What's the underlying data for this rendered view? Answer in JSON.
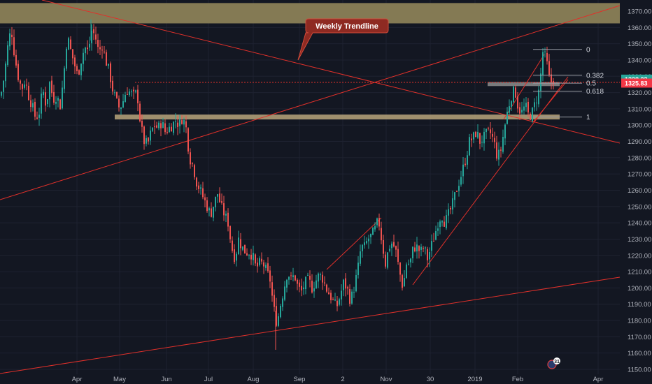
{
  "chart_data": {
    "type": "candlestick",
    "y_axis": {
      "range": [
        1148,
        1375
      ],
      "ticks": [
        "1370.00",
        "1360.00",
        "1350.00",
        "1340.00",
        "1330.00",
        "1320.00",
        "1310.00",
        "1300.00",
        "1290.00",
        "1280.00",
        "1270.00",
        "1260.00",
        "1250.00",
        "1240.00",
        "1230.00",
        "1220.00",
        "1210.00",
        "1200.00",
        "1190.00",
        "1180.00",
        "1170.00",
        "1160.00",
        "1150.00"
      ],
      "side": "right"
    },
    "x_axis": {
      "ticks": [
        "Apr",
        "May",
        "Jun",
        "Jul",
        "Aug",
        "Sep",
        "2",
        "Nov",
        "30",
        "2019",
        "Feb",
        "Apr"
      ]
    },
    "price_tags": [
      {
        "value": 1328.23,
        "label": "1328.23",
        "color": "#26a69a"
      },
      {
        "value": 1325.83,
        "label": "1325.83",
        "color": "#f23645"
      }
    ],
    "fibonacci": {
      "high": 1346.5,
      "low": 1305.0,
      "levels": [
        {
          "ratio": 0,
          "label": "0"
        },
        {
          "ratio": 0.382,
          "label": "0.382"
        },
        {
          "ratio": 0.5,
          "label": "0.5"
        },
        {
          "ratio": 0.618,
          "label": "0.618"
        },
        {
          "ratio": 1,
          "label": "1"
        }
      ]
    },
    "zones": [
      {
        "from": 1362.5,
        "to": 1375,
        "color": "#8a7f57"
      },
      {
        "from": 1303.5,
        "to": 1306.5,
        "color": "#b9a57a"
      },
      {
        "from": 1324.0,
        "to": 1326.5,
        "color": "#8c8c8c"
      }
    ],
    "annotations": [
      {
        "text": "Weekly Trendline"
      }
    ],
    "badge": {
      "text": "31"
    },
    "price_path": [
      [
        0,
        1318
      ],
      [
        5,
        1330
      ],
      [
        10,
        1348
      ],
      [
        15,
        1360
      ],
      [
        20,
        1342
      ],
      [
        25,
        1330
      ],
      [
        30,
        1322
      ],
      [
        35,
        1328
      ],
      [
        40,
        1318
      ],
      [
        45,
        1312
      ],
      [
        50,
        1304
      ],
      [
        55,
        1308
      ],
      [
        60,
        1322
      ],
      [
        65,
        1312
      ],
      [
        70,
        1326
      ],
      [
        75,
        1316
      ],
      [
        80,
        1318
      ],
      [
        85,
        1312
      ],
      [
        90,
        1330
      ],
      [
        95,
        1355
      ],
      [
        100,
        1346
      ],
      [
        105,
        1338
      ],
      [
        110,
        1330
      ],
      [
        115,
        1340
      ],
      [
        120,
        1348
      ],
      [
        125,
        1345
      ],
      [
        130,
        1358
      ],
      [
        135,
        1355
      ],
      [
        140,
        1345
      ],
      [
        145,
        1349
      ],
      [
        150,
        1340
      ],
      [
        155,
        1333
      ],
      [
        160,
        1322
      ],
      [
        165,
        1315
      ],
      [
        170,
        1310
      ],
      [
        175,
        1315
      ],
      [
        180,
        1322
      ],
      [
        185,
        1320
      ],
      [
        190,
        1318
      ],
      [
        195,
        1320
      ],
      [
        200,
        1300
      ],
      [
        205,
        1290
      ],
      [
        210,
        1288
      ],
      [
        215,
        1296
      ],
      [
        220,
        1300
      ],
      [
        225,
        1298
      ],
      [
        230,
        1302
      ],
      [
        235,
        1296
      ],
      [
        240,
        1298
      ],
      [
        245,
        1300
      ],
      [
        250,
        1303
      ],
      [
        255,
        1300
      ],
      [
        260,
        1305
      ],
      [
        265,
        1298
      ],
      [
        270,
        1280
      ],
      [
        275,
        1275
      ],
      [
        280,
        1265
      ],
      [
        285,
        1260
      ],
      [
        290,
        1255
      ],
      [
        295,
        1250
      ],
      [
        300,
        1245
      ],
      [
        305,
        1252
      ],
      [
        310,
        1258
      ],
      [
        315,
        1250
      ],
      [
        320,
        1245
      ],
      [
        325,
        1240
      ],
      [
        330,
        1225
      ],
      [
        335,
        1218
      ],
      [
        340,
        1230
      ],
      [
        345,
        1225
      ],
      [
        350,
        1222
      ],
      [
        355,
        1222
      ],
      [
        360,
        1220
      ],
      [
        365,
        1212
      ],
      [
        370,
        1215
      ],
      [
        375,
        1215
      ],
      [
        380,
        1210
      ],
      [
        385,
        1205
      ],
      [
        390,
        1188
      ],
      [
        395,
        1178
      ],
      [
        400,
        1190
      ],
      [
        405,
        1200
      ],
      [
        410,
        1210
      ],
      [
        415,
        1205
      ],
      [
        420,
        1208
      ],
      [
        425,
        1200
      ],
      [
        430,
        1198
      ],
      [
        435,
        1203
      ],
      [
        440,
        1205
      ],
      [
        445,
        1200
      ],
      [
        450,
        1204
      ],
      [
        455,
        1208
      ],
      [
        460,
        1206
      ],
      [
        465,
        1200
      ],
      [
        470,
        1196
      ],
      [
        475,
        1192
      ],
      [
        480,
        1188
      ],
      [
        485,
        1195
      ],
      [
        490,
        1203
      ],
      [
        495,
        1200
      ],
      [
        500,
        1192
      ],
      [
        505,
        1200
      ],
      [
        510,
        1210
      ],
      [
        515,
        1225
      ],
      [
        520,
        1225
      ],
      [
        525,
        1230
      ],
      [
        530,
        1232
      ],
      [
        535,
        1236
      ],
      [
        540,
        1242
      ],
      [
        545,
        1228
      ],
      [
        550,
        1215
      ],
      [
        555,
        1225
      ],
      [
        560,
        1228
      ],
      [
        565,
        1222
      ],
      [
        570,
        1210
      ],
      [
        575,
        1200
      ],
      [
        580,
        1215
      ],
      [
        585,
        1215
      ],
      [
        590,
        1225
      ],
      [
        595,
        1225
      ],
      [
        600,
        1222
      ],
      [
        605,
        1225
      ],
      [
        610,
        1218
      ],
      [
        615,
        1225
      ],
      [
        620,
        1232
      ],
      [
        625,
        1240
      ],
      [
        630,
        1245
      ],
      [
        635,
        1240
      ],
      [
        640,
        1245
      ],
      [
        645,
        1250
      ],
      [
        650,
        1258
      ],
      [
        655,
        1265
      ],
      [
        660,
        1272
      ],
      [
        665,
        1280
      ],
      [
        670,
        1290
      ],
      [
        675,
        1292
      ],
      [
        680,
        1296
      ],
      [
        685,
        1290
      ],
      [
        690,
        1292
      ],
      [
        695,
        1295
      ],
      [
        700,
        1295
      ],
      [
        705,
        1290
      ],
      [
        710,
        1280
      ],
      [
        715,
        1285
      ],
      [
        720,
        1298
      ],
      [
        725,
        1310
      ],
      [
        730,
        1318
      ],
      [
        735,
        1322
      ],
      [
        740,
        1310
      ],
      [
        745,
        1308
      ],
      [
        750,
        1312
      ],
      [
        755,
        1305
      ],
      [
        760,
        1308
      ],
      [
        765,
        1315
      ],
      [
        770,
        1322
      ],
      [
        775,
        1345
      ],
      [
        780,
        1340
      ],
      [
        785,
        1326
      ],
      [
        790,
        1328
      ]
    ]
  }
}
